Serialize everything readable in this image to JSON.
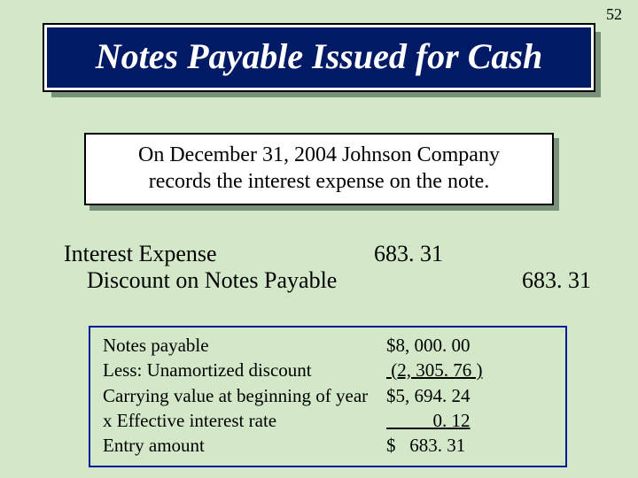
{
  "page_number": "52",
  "title": "Notes Payable Issued for Cash",
  "description_line1": "On December 31, 2004 Johnson Company",
  "description_line2": "records the interest expense on the note.",
  "journal": {
    "debit_account": "Interest Expense",
    "credit_account": "Discount on Notes Payable",
    "debit_amount": "683. 31",
    "credit_amount": "683. 31"
  },
  "calc": {
    "rows": [
      {
        "label": "Notes payable",
        "value": "$8, 000. 00"
      },
      {
        "label": "Less:  Unamortized discount",
        "value": " (2, 305. 76 )",
        "underline": true
      },
      {
        "label": "Carrying value at beginning of year",
        "value": "$5, 694. 24"
      },
      {
        "label": "x  Effective interest rate",
        "value": "          0. 12",
        "underline": true
      },
      {
        "label": "Entry amount",
        "value": "$   683. 31"
      }
    ]
  },
  "colors": {
    "slide_bg": "#d3e8c8",
    "title_bg": "#001a66",
    "calc_border": "#001a99",
    "shadow": "#7a907a"
  }
}
